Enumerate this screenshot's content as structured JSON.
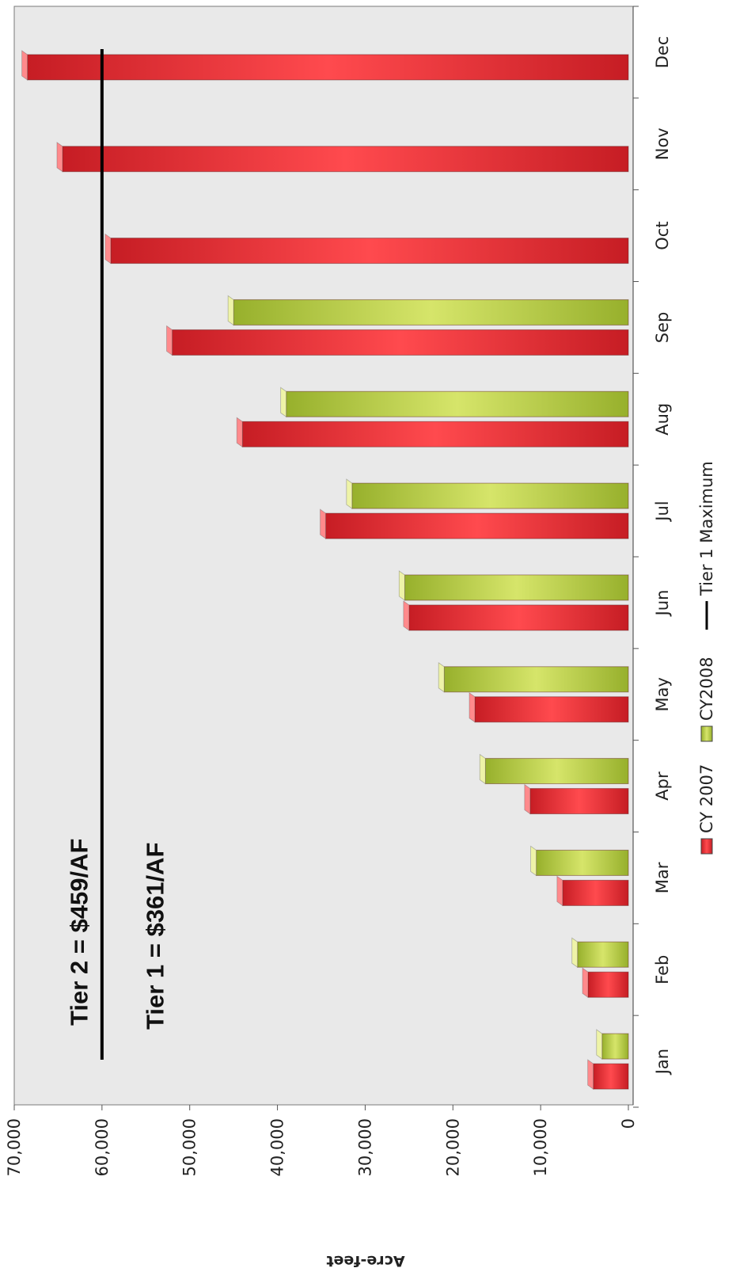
{
  "chart_data": {
    "type": "bar",
    "orientation": "rotated-horizontal",
    "categories": [
      "Jan",
      "Feb",
      "Mar",
      "Apr",
      "May",
      "Jun",
      "Jul",
      "Aug",
      "Sep",
      "Oct",
      "Nov",
      "Dec"
    ],
    "series": [
      {
        "name": "CY 2007",
        "color": "#e8292e",
        "values": [
          4000,
          4600,
          7500,
          11200,
          17500,
          25000,
          34500,
          44000,
          52000,
          59000,
          64500,
          68500
        ]
      },
      {
        "name": "CY2008",
        "color": "#b6cc45",
        "values": [
          3000,
          5800,
          10500,
          16300,
          21000,
          25500,
          31500,
          39000,
          45000,
          null,
          null,
          null
        ]
      }
    ],
    "reference_line": {
      "name": "Tier 1 Maximum",
      "value": 60000,
      "color": "#000000"
    },
    "annotations": [
      "Tier 2 = $459/AF",
      "Tier 1 = $361/AF"
    ],
    "ylabel": "Acre-feet",
    "xlabel": "",
    "title": "",
    "ylim": [
      0,
      70000
    ],
    "yticks": [
      0,
      10000,
      20000,
      30000,
      40000,
      50000,
      60000,
      70000
    ],
    "ytick_labels": [
      "0",
      "10,000",
      "20,000",
      "30,000",
      "40,000",
      "50,000",
      "60,000",
      "70,000"
    ],
    "grid": false,
    "legend_position": "bottom",
    "plot_background": "#e9e9e9"
  }
}
